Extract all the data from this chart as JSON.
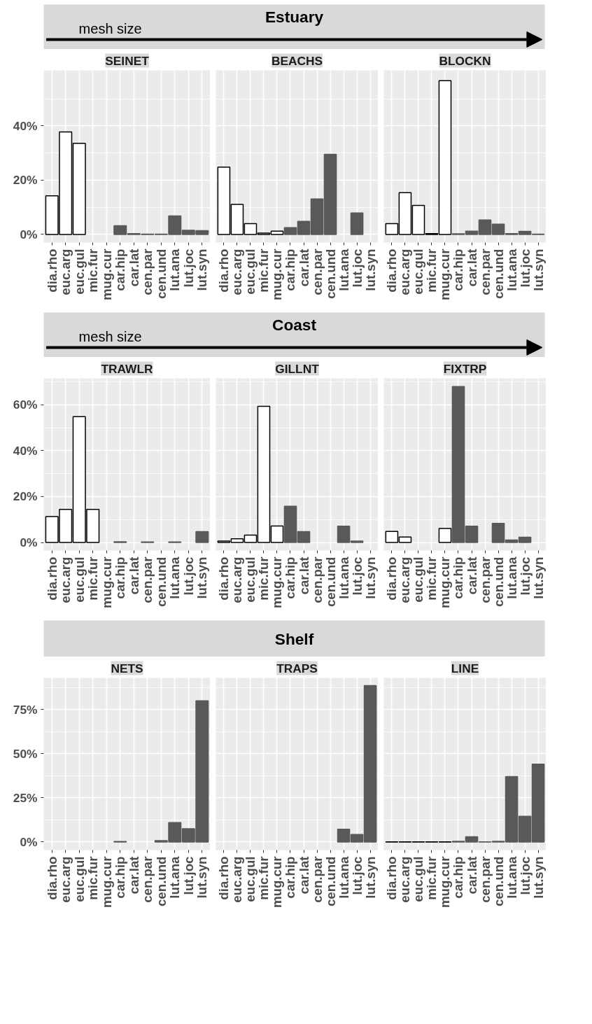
{
  "chart_data": [
    {
      "type": "bar",
      "title": "SEINET",
      "annotations": [
        "Estuary",
        "mesh size"
      ],
      "categories": [
        "dia.rho",
        "euc.arg",
        "euc.gul",
        "mic.fur",
        "mug.cur",
        "car.hip",
        "car.lat",
        "cen.par",
        "cen.und",
        "lut.ana",
        "lut.joc",
        "lut.syn"
      ],
      "values": [
        14.2,
        37.8,
        33.6,
        null,
        null,
        3.2,
        0.3,
        0.1,
        0.1,
        6.8,
        1.5,
        1.4
      ],
      "colors": [
        "#ffffff",
        "#ffffff",
        "#ffffff",
        "#ffffff",
        "#ffffff",
        "#595959",
        "#595959",
        "#595959",
        "#595959",
        "#595959",
        "#595959",
        "#595959"
      ],
      "ylim": [
        -3,
        60.5
      ],
      "yticks": [
        {
          "value": 0,
          "label": "0%"
        },
        {
          "value": 20,
          "label": "20%"
        },
        {
          "value": 40,
          "label": "40%"
        }
      ],
      "grid": true
    },
    {
      "type": "bar",
      "title": "BEACHS",
      "categories": [
        "dia.rho",
        "euc.arg",
        "euc.gul",
        "mic.fur",
        "mug.cur",
        "car.hip",
        "car.lat",
        "cen.par",
        "cen.und",
        "lut.ana",
        "lut.joc",
        "lut.syn"
      ],
      "values": [
        24.8,
        11.1,
        4.0,
        0.5,
        1.2,
        2.5,
        4.8,
        13.1,
        29.5,
        null,
        7.9,
        null
      ],
      "colors": [
        "#ffffff",
        "#ffffff",
        "#ffffff",
        "#ffffff",
        "#ffffff",
        "#595959",
        "#595959",
        "#595959",
        "#595959",
        "#595959",
        "#595959",
        "#595959"
      ],
      "ylim": [
        -3,
        60.5
      ],
      "yticks": [
        0,
        20,
        40
      ],
      "grid": true,
      "tick_labels": "x"
    },
    {
      "type": "bar",
      "title": "BLOCKN",
      "categories": [
        "dia.rho",
        "euc.arg",
        "euc.gul",
        "mic.fur",
        "mug.cur",
        "car.hip",
        "car.lat",
        "cen.par",
        "cen.und",
        "lut.ana",
        "lut.joc",
        "lut.syn"
      ],
      "values": [
        4.0,
        15.4,
        10.7,
        0.3,
        56.7,
        0.2,
        1.2,
        5.3,
        3.8,
        0.3,
        1.1,
        0.1
      ],
      "colors": [
        "#ffffff",
        "#ffffff",
        "#ffffff",
        "#ffffff",
        "#ffffff",
        "#595959",
        "#595959",
        "#595959",
        "#595959",
        "#595959",
        "#595959",
        "#595959"
      ],
      "ylim": [
        -3,
        60.5
      ],
      "yticks": [
        0,
        20,
        40
      ],
      "grid": true,
      "tick_labels": "x"
    },
    {
      "type": "bar",
      "title": "TRAWLR",
      "annotations": [
        "Coast",
        "mesh size"
      ],
      "categories": [
        "dia.rho",
        "euc.arg",
        "euc.gul",
        "mic.fur",
        "mug.cur",
        "car.hip",
        "car.lat",
        "cen.par",
        "cen.und",
        "lut.ana",
        "lut.joc",
        "lut.syn"
      ],
      "values": [
        11.3,
        14.4,
        54.8,
        14.4,
        null,
        0.3,
        null,
        0.2,
        null,
        0.2,
        null,
        4.7
      ],
      "colors": [
        "#ffffff",
        "#ffffff",
        "#ffffff",
        "#ffffff",
        "#ffffff",
        "#595959",
        "#595959",
        "#595959",
        "#595959",
        "#595959",
        "#595959",
        "#595959"
      ],
      "ylim": [
        -3.5,
        71.5
      ],
      "yticks": [
        {
          "value": 0,
          "label": "0%"
        },
        {
          "value": 20,
          "label": "20%"
        },
        {
          "value": 40,
          "label": "40%"
        },
        {
          "value": 60,
          "label": "60%"
        }
      ],
      "grid": true
    },
    {
      "type": "bar",
      "title": "GILLNT",
      "categories": [
        "dia.rho",
        "euc.arg",
        "euc.gul",
        "mic.fur",
        "mug.cur",
        "car.hip",
        "car.lat",
        "cen.par",
        "cen.und",
        "lut.ana",
        "lut.joc",
        "lut.syn"
      ],
      "values": [
        0.6,
        1.6,
        3.2,
        59.3,
        7.2,
        15.8,
        4.7,
        null,
        null,
        7.1,
        0.6,
        null
      ],
      "colors": [
        "#ffffff",
        "#ffffff",
        "#ffffff",
        "#ffffff",
        "#ffffff",
        "#595959",
        "#595959",
        "#595959",
        "#595959",
        "#595959",
        "#595959",
        "#595959"
      ],
      "ylim": [
        -3.5,
        71.5
      ],
      "yticks": [
        0,
        20,
        40,
        60
      ],
      "grid": true,
      "tick_labels": "x"
    },
    {
      "type": "bar",
      "title": "FIXTRP",
      "categories": [
        "dia.rho",
        "euc.arg",
        "euc.gul",
        "mic.fur",
        "mug.cur",
        "car.hip",
        "car.lat",
        "cen.par",
        "cen.und",
        "lut.ana",
        "lut.joc",
        "lut.syn"
      ],
      "values": [
        4.8,
        2.4,
        null,
        null,
        6.1,
        67.9,
        7.1,
        null,
        8.3,
        1.1,
        2.3,
        null
      ],
      "colors": [
        "#ffffff",
        "#ffffff",
        "#ffffff",
        "#ffffff",
        "#ffffff",
        "#595959",
        "#595959",
        "#595959",
        "#595959",
        "#595959",
        "#595959",
        "#595959"
      ],
      "ylim": [
        -3.5,
        71.5
      ],
      "yticks": [
        0,
        20,
        40,
        60
      ],
      "grid": true,
      "tick_labels": "x"
    },
    {
      "type": "bar",
      "title": "NETS",
      "annotations": [
        "Shelf"
      ],
      "categories": [
        "dia.rho",
        "euc.arg",
        "euc.gul",
        "mic.fur",
        "mug.cur",
        "car.hip",
        "car.lat",
        "cen.par",
        "cen.und",
        "lut.ana",
        "lut.joc",
        "lut.syn"
      ],
      "values": [
        null,
        null,
        null,
        null,
        null,
        0.3,
        null,
        null,
        0.8,
        11.0,
        7.5,
        80.0
      ],
      "colors": [
        "#ffffff",
        "#ffffff",
        "#ffffff",
        "#ffffff",
        "#ffffff",
        "#595959",
        "#595959",
        "#595959",
        "#595959",
        "#595959",
        "#595959",
        "#595959"
      ],
      "ylim": [
        -4.6,
        93
      ],
      "yticks": [
        {
          "value": 0,
          "label": "0%"
        },
        {
          "value": 25,
          "label": "25%"
        },
        {
          "value": 50,
          "label": "50%"
        },
        {
          "value": 75,
          "label": "75%"
        }
      ],
      "grid": true
    },
    {
      "type": "bar",
      "title": "TRAPS",
      "categories": [
        "dia.rho",
        "euc.arg",
        "euc.gul",
        "mic.fur",
        "mug.cur",
        "car.hip",
        "car.lat",
        "cen.par",
        "cen.und",
        "lut.ana",
        "lut.joc",
        "lut.syn"
      ],
      "values": [
        null,
        null,
        null,
        null,
        null,
        null,
        null,
        null,
        null,
        7.2,
        4.2,
        88.6
      ],
      "colors": [
        "#ffffff",
        "#ffffff",
        "#ffffff",
        "#ffffff",
        "#ffffff",
        "#595959",
        "#595959",
        "#595959",
        "#595959",
        "#595959",
        "#595959",
        "#595959"
      ],
      "ylim": [
        -4.6,
        93
      ],
      "yticks": [
        0,
        25,
        50,
        75
      ],
      "grid": true,
      "tick_labels": "x"
    },
    {
      "type": "bar",
      "title": "LINE",
      "categories": [
        "dia.rho",
        "euc.arg",
        "euc.gul",
        "mic.fur",
        "mug.cur",
        "car.hip",
        "car.lat",
        "cen.par",
        "cen.und",
        "lut.ana",
        "lut.joc",
        "lut.syn"
      ],
      "values": [
        0.1,
        0.1,
        0.1,
        0.1,
        0.1,
        0.4,
        2.9,
        0.1,
        0.4,
        37.1,
        14.5,
        44.1
      ],
      "colors": [
        "#ffffff",
        "#ffffff",
        "#ffffff",
        "#ffffff",
        "#ffffff",
        "#595959",
        "#595959",
        "#595959",
        "#595959",
        "#595959",
        "#595959",
        "#595959"
      ],
      "ylim": [
        -4.6,
        93
      ],
      "yticks": [
        0,
        25,
        50,
        75
      ],
      "grid": true,
      "tick_labels": "x"
    }
  ]
}
